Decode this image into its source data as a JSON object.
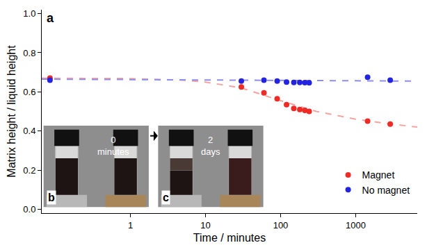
{
  "chart_data": {
    "type": "scatter",
    "panel": "a",
    "x_label": "Time / minutes",
    "y_label": "Matrix height / liquid height",
    "log": "x",
    "xlim": [
      0.066,
      6600
    ],
    "xticks": [
      1,
      10,
      100,
      1000
    ],
    "ylim": [
      -0.02,
      1.02
    ],
    "yticks": [
      {
        "value": 0,
        "label": "0.0"
      },
      0.2,
      0.4,
      0.6,
      0.8,
      {
        "value": 1,
        "label": "1.0"
      }
    ],
    "grid": false,
    "legend": "lower right",
    "marker": "circle",
    "series": [
      {
        "name": "Magnet",
        "color": "#ee2b24",
        "x": [
          0.085,
          30,
          60,
          90,
          120,
          150,
          180,
          210,
          240,
          1440,
          2880
        ],
        "values": [
          0.67,
          0.625,
          0.595,
          0.565,
          0.535,
          0.515,
          0.51,
          0.505,
          0.5,
          0.45,
          0.435
        ],
        "fit": {
          "color": "#f5a3a0",
          "line_style": "dashed",
          "x": [
            0.066,
            1,
            5,
            10,
            30,
            100,
            300,
            1000,
            3000,
            6600
          ],
          "values": [
            0.67,
            0.668,
            0.66,
            0.65,
            0.62,
            0.555,
            0.5,
            0.46,
            0.435,
            0.42
          ]
        }
      },
      {
        "name": "No magnet",
        "color": "#2424e0",
        "x": [
          0.085,
          30,
          60,
          90,
          120,
          150,
          180,
          210,
          240,
          1440,
          2880
        ],
        "values": [
          0.66,
          0.655,
          0.66,
          0.655,
          0.65,
          0.648,
          0.648,
          0.647,
          0.646,
          0.675,
          0.66
        ],
        "fit": {
          "color": "#8d8df0",
          "line_style": "dashed",
          "x": [
            0.066,
            6600
          ],
          "values": [
            0.665,
            0.655
          ]
        }
      }
    ],
    "insets": [
      {
        "label": "b",
        "text": "0 minutes"
      },
      {
        "label": "c",
        "text": "2 days"
      }
    ]
  }
}
